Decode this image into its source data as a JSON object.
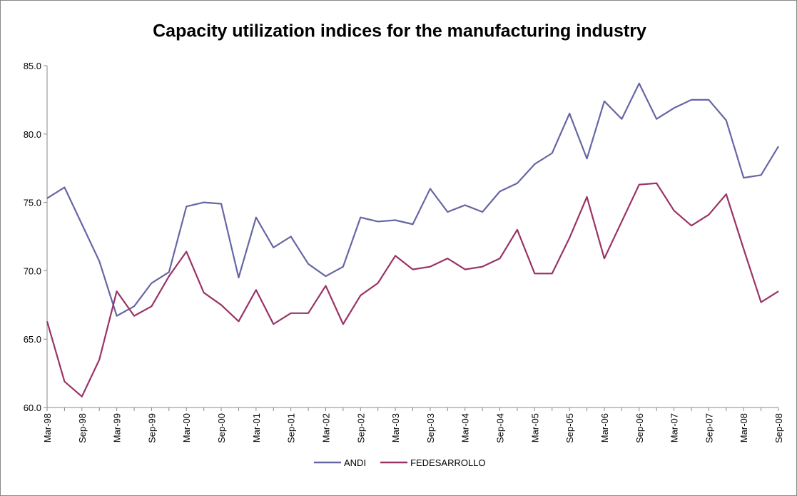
{
  "chart_data": {
    "type": "line",
    "title": "Capacity utilization indices for the manufacturing industry",
    "categories": [
      "Mar-98",
      null,
      "Sep-98",
      null,
      "Mar-99",
      null,
      "Sep-99",
      null,
      "Mar-00",
      null,
      "Sep-00",
      null,
      "Mar-01",
      null,
      "Sep-01",
      null,
      "Mar-02",
      null,
      "Sep-02",
      null,
      "Mar-03",
      null,
      "Sep-03",
      null,
      "Mar-04",
      null,
      "Sep-04",
      null,
      "Mar-05",
      null,
      "Sep-05",
      null,
      "Mar-06",
      null,
      "Sep-06",
      null,
      "Mar-07",
      null,
      "Sep-07",
      null,
      "Mar-08",
      null,
      "Sep-08"
    ],
    "series": [
      {
        "name": "ANDI",
        "color": "#6666a3",
        "values": [
          75.3,
          76.1,
          73.4,
          70.7,
          66.7,
          67.4,
          69.1,
          69.9,
          74.7,
          75.0,
          74.9,
          69.5,
          73.9,
          71.7,
          72.5,
          70.5,
          69.6,
          70.3,
          73.9,
          73.6,
          73.7,
          73.4,
          76.0,
          74.3,
          74.8,
          74.3,
          75.8,
          76.4,
          77.8,
          78.6,
          81.5,
          78.2,
          82.4,
          81.1,
          83.7,
          81.1,
          81.9,
          82.5,
          82.5,
          81.0,
          76.8,
          77.0,
          79.1
        ]
      },
      {
        "name": "FEDESARROLLO",
        "color": "#993366",
        "values": [
          66.3,
          61.9,
          60.8,
          63.5,
          68.5,
          66.7,
          67.4,
          69.6,
          71.4,
          68.4,
          67.5,
          66.3,
          68.6,
          66.1,
          66.9,
          66.9,
          68.9,
          66.1,
          68.2,
          69.1,
          71.1,
          70.1,
          70.3,
          70.9,
          70.1,
          70.3,
          70.9,
          73.0,
          69.8,
          69.8,
          72.4,
          75.4,
          70.9,
          73.6,
          76.3,
          76.4,
          74.4,
          73.3,
          74.1,
          75.6,
          71.6,
          67.7,
          68.5
        ]
      }
    ],
    "ylim": [
      60,
      85
    ],
    "yticks": [
      {
        "value": 60,
        "label": "60.0"
      },
      {
        "value": 65,
        "label": "65.0"
      },
      {
        "value": 70,
        "label": "70.0"
      },
      {
        "value": 75,
        "label": "75.0"
      },
      {
        "value": 80,
        "label": "80.0"
      },
      {
        "value": 85,
        "label": "85.0"
      }
    ],
    "grid": false,
    "legend": "bottom"
  }
}
